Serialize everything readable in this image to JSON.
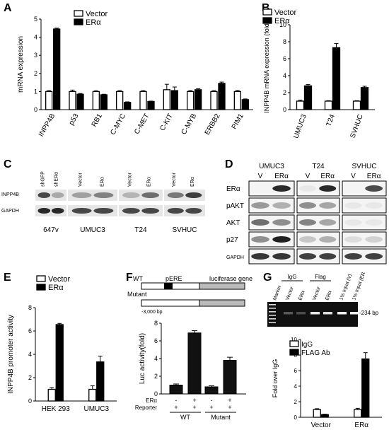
{
  "panel_letters": {
    "a": "A",
    "b": "B",
    "c": "C",
    "d": "D",
    "e": "E",
    "f": "F",
    "g": "G"
  },
  "chart_data": [
    {
      "panel": "A",
      "type": "bar",
      "ylabel": "mRNA expression",
      "ylim": [
        0,
        5
      ],
      "yticks": [
        0,
        1,
        2,
        3,
        4,
        5
      ],
      "categories": [
        "INPP4B",
        "p53",
        "RB1",
        "C-MYC",
        "C-MET",
        "C-KIT",
        "C-MYB",
        "ERBB2",
        "PIM1"
      ],
      "series": [
        {
          "name": "Vector",
          "values": [
            1.0,
            1.0,
            1.0,
            1.0,
            1.0,
            1.1,
            1.0,
            1.0,
            1.0
          ],
          "errors": [
            0.05,
            0.08,
            0.04,
            0.05,
            0.05,
            0.3,
            0.05,
            0.05,
            0.06
          ],
          "fill": "#ffffff"
        },
        {
          "name": "ERα",
          "values": [
            4.45,
            0.85,
            0.82,
            0.4,
            0.45,
            1.05,
            1.1,
            1.45,
            0.55
          ],
          "errors": [
            0.05,
            0.04,
            0.03,
            0.03,
            0.02,
            0.2,
            0.05,
            0.07,
            0.04
          ],
          "fill": "#000000"
        }
      ]
    },
    {
      "panel": "B",
      "type": "bar",
      "ylabel": "INPP4B mRNA expression (fold)",
      "ylim": [
        0,
        10
      ],
      "yticks": [
        0,
        2,
        4,
        6,
        8,
        10
      ],
      "categories": [
        "UMUC3",
        "T24",
        "SVHUC"
      ],
      "series": [
        {
          "name": "Vector",
          "values": [
            1.0,
            1.0,
            1.0
          ],
          "errors": [
            0.12,
            0.05,
            0.05
          ],
          "fill": "#ffffff"
        },
        {
          "name": "ERα",
          "values": [
            2.8,
            7.3,
            2.6
          ],
          "errors": [
            0.15,
            0.5,
            0.15
          ],
          "fill": "#000000"
        }
      ]
    },
    {
      "panel": "E",
      "type": "bar",
      "ylabel": "INPP4B promoter activity",
      "ylim": [
        0,
        8
      ],
      "yticks": [
        0,
        2,
        4,
        6,
        8
      ],
      "categories": [
        "HEK 293",
        "UMUC3"
      ],
      "series": [
        {
          "name": "Vector",
          "values": [
            1.0,
            1.0
          ],
          "errors": [
            0.15,
            0.3
          ],
          "fill": "#ffffff"
        },
        {
          "name": "ERα",
          "values": [
            6.55,
            3.35
          ],
          "errors": [
            0.1,
            0.5
          ],
          "fill": "#000000"
        }
      ]
    },
    {
      "panel": "F",
      "type": "bar",
      "ylabel": "Luc activity(fold)",
      "ylim": [
        0,
        8
      ],
      "yticks": [
        0,
        2,
        4,
        6,
        8
      ],
      "categories": [
        "WT",
        "WT",
        "Mutant",
        "Mutant"
      ],
      "series": [
        {
          "name": "",
          "values": [
            1.0,
            6.9,
            0.8,
            3.8
          ],
          "errors": [
            0.12,
            0.25,
            0.12,
            0.35
          ],
          "fill": "#000000"
        }
      ]
    },
    {
      "panel": "G",
      "type": "bar",
      "ylabel": "Fold over IgG",
      "ylim": [
        0,
        10
      ],
      "yticks": [
        0,
        2,
        4,
        6,
        8,
        10
      ],
      "categories": [
        "Vector",
        "ERα"
      ],
      "series": [
        {
          "name": "IgG",
          "values": [
            1.0,
            1.0
          ],
          "errors": [
            0.1,
            0.15
          ],
          "fill": "#ffffff"
        },
        {
          "name": "FLAG Ab",
          "values": [
            0.35,
            7.5
          ],
          "errors": [
            0.05,
            0.8
          ],
          "fill": "#000000"
        }
      ]
    }
  ],
  "blots": {
    "c": {
      "row_labels": [
        "INPP4B",
        "GAPDH"
      ],
      "groups": [
        {
          "name": "647v",
          "lanes": [
            "shGFP",
            "shERα"
          ]
        },
        {
          "name": "UMUC3",
          "lanes": [
            "Vector",
            "ERα"
          ]
        },
        {
          "name": "T24",
          "lanes": [
            "Vector",
            "ERα"
          ]
        },
        {
          "name": "SVHUC",
          "lanes": [
            "Vector",
            "ERα"
          ]
        }
      ]
    },
    "d": {
      "row_labels": [
        "ERα",
        "pAKT",
        "AKT",
        "p27",
        "GAPDH"
      ],
      "groups": [
        {
          "name": "UMUC3",
          "lanes": [
            "V",
            "ERα"
          ]
        },
        {
          "name": "T24",
          "lanes": [
            "V",
            "ERα"
          ]
        },
        {
          "name": "SVHUC",
          "lanes": [
            "V",
            "ERα"
          ]
        }
      ]
    }
  },
  "panel_f": {
    "wt_label": "WT",
    "mutant_label": "Mutant",
    "pere_label": "pERE",
    "luciferase_label": "luciferase gene",
    "bp_label": "-3,000 bp",
    "row_era": "ERα",
    "row_reporter": "Reporter",
    "era_signs": [
      "-",
      "+",
      "-",
      "+"
    ],
    "reporter_signs": [
      "+",
      "+",
      "+",
      "+"
    ],
    "group_wt": "WT",
    "group_mutant": "Mutant"
  },
  "panel_g": {
    "gel_lanes": [
      "Marker",
      "Vector",
      "ERα",
      "Vector",
      "ERα",
      "1% Input (V)",
      "1% Input (ERα)"
    ],
    "group_igg": "IgG",
    "group_flag": "Flag",
    "band_size": "-234 bp"
  }
}
